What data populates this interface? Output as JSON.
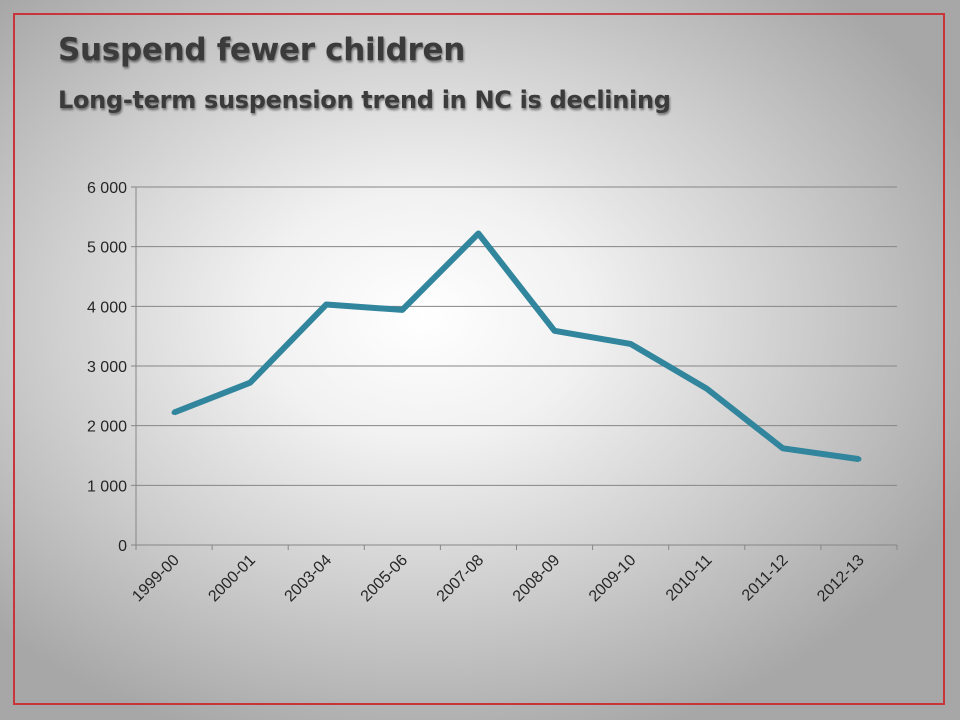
{
  "slide": {
    "title": "Suspend fewer children",
    "subtitle": "Long-term suspension trend in NC is declining"
  },
  "colors": {
    "frame": "#c8343a",
    "line": "#31859c",
    "gridline": "#868686",
    "title_text": "#3b3b3b"
  },
  "chart_data": {
    "type": "line",
    "title": "",
    "xlabel": "",
    "ylabel": "",
    "categories": [
      "1999-00",
      "2000-01",
      "2003-04",
      "2005-06",
      "2007-08",
      "2008-09",
      "2009-10",
      "2010-11",
      "2011-12",
      "2012-13"
    ],
    "series": [
      {
        "values": [
          2220,
          2720,
          4030,
          3940,
          5220,
          3590,
          3370,
          2620,
          1620,
          1440
        ]
      }
    ],
    "ylim": [
      0,
      6000
    ],
    "yticks": [
      0,
      1000,
      2000,
      3000,
      4000,
      5000,
      6000
    ],
    "ytick_labels": [
      "0",
      "1 000",
      "2 000",
      "3 000",
      "4 000",
      "5 000",
      "6 000"
    ],
    "grid": true,
    "legend": "none"
  }
}
